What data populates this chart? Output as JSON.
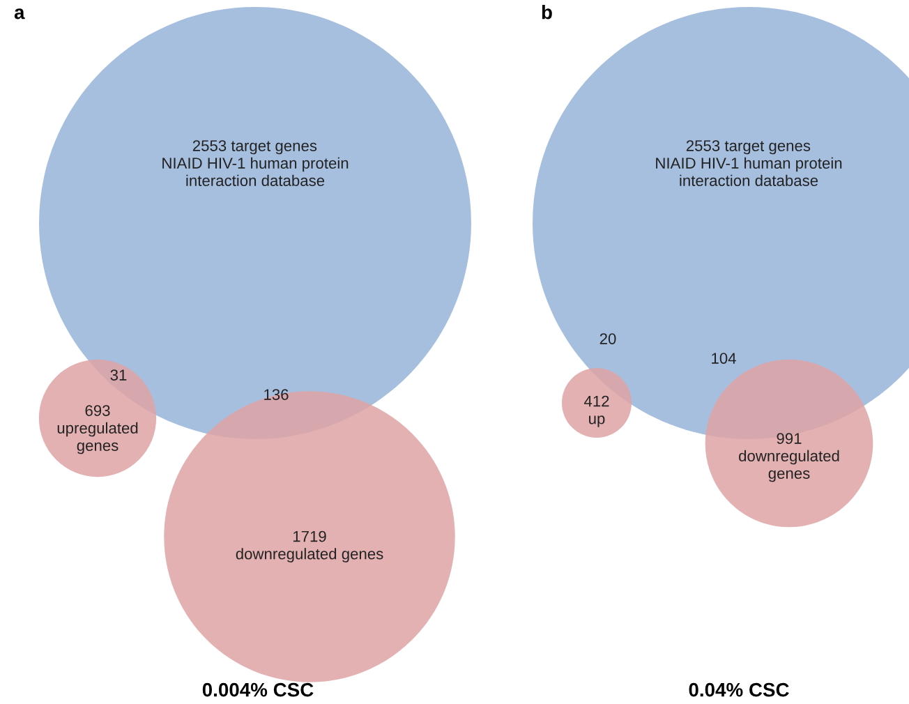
{
  "chart_data": [
    {
      "type": "other",
      "title": "a",
      "xlabel": "0.004% CSC",
      "categories": [
        " target genes\nNIAID HIV-1 human protein\ninteraction database",
        "\nupregulated\ngenes",
        "\ndownregulated genes"
      ],
      "values": [
        2553,
        693,
        1719
      ],
      "colors": [
        "#a7bfdf",
        "#dea3a5",
        "#dea3a5"
      ],
      "data_labels": true,
      "annotations": [
        "31",
        "136"
      ]
    },
    {
      "type": "other",
      "title": "b",
      "xlabel": "0.04% CSC",
      "categories": [
        " target genes\nNIAID HIV-1 human protein\ninteraction database",
        "\nup",
        "\ndownregulated\ngenes"
      ],
      "values": [
        2553,
        412,
        991
      ],
      "colors": [
        "#a7bfdf",
        "#dea3a5",
        "#dea3a5"
      ],
      "data_labels": true,
      "annotations": [
        "20",
        "104"
      ]
    }
  ]
}
